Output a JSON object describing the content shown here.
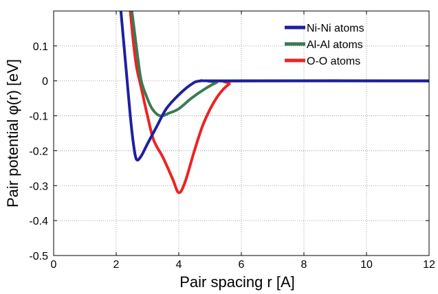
{
  "chart_data": {
    "type": "line",
    "title": "",
    "xlabel": "Pair spacing r [A]",
    "ylabel": "Pair potential φ(r) [eV]",
    "xlim": [
      0,
      12
    ],
    "ylim": [
      -0.5,
      0.2
    ],
    "x_ticks": [
      0,
      2,
      4,
      6,
      8,
      10,
      12
    ],
    "y_ticks": [
      -0.5,
      -0.4,
      -0.3,
      -0.2,
      -0.1,
      0,
      0.1
    ],
    "x_tick_labels": [
      "0",
      "2",
      "4",
      "6",
      "8",
      "10",
      "12"
    ],
    "y_tick_labels": [
      "-0.5",
      "-0.4",
      "-0.3",
      "-0.2",
      "-0.1",
      "0",
      "0.1"
    ],
    "grid": true,
    "legend_position": "top-right",
    "series": [
      {
        "name": "Ni-Ni atoms",
        "color": "#1f1fa0",
        "points": [
          [
            2.15,
            0.2
          ],
          [
            2.25,
            0.1
          ],
          [
            2.35,
            0.0
          ],
          [
            2.45,
            -0.1
          ],
          [
            2.55,
            -0.18
          ],
          [
            2.65,
            -0.225
          ],
          [
            2.8,
            -0.215
          ],
          [
            3.0,
            -0.18
          ],
          [
            3.3,
            -0.13
          ],
          [
            3.6,
            -0.08
          ],
          [
            4.0,
            -0.04
          ],
          [
            4.4,
            -0.01
          ],
          [
            4.7,
            0.0
          ],
          [
            5.5,
            0.0
          ],
          [
            12.0,
            0.0
          ]
        ]
      },
      {
        "name": "Al-Al atoms",
        "color": "#3a7a55",
        "points": [
          [
            2.5,
            0.2
          ],
          [
            2.6,
            0.13
          ],
          [
            2.7,
            0.06
          ],
          [
            2.8,
            0.0
          ],
          [
            2.95,
            -0.04
          ],
          [
            3.15,
            -0.08
          ],
          [
            3.4,
            -0.1
          ],
          [
            3.7,
            -0.092
          ],
          [
            4.0,
            -0.08
          ],
          [
            4.4,
            -0.05
          ],
          [
            4.8,
            -0.025
          ],
          [
            5.2,
            -0.005
          ],
          [
            5.5,
            0.0
          ],
          [
            12.0,
            0.0
          ]
        ]
      },
      {
        "name": "O-O atoms",
        "color": "#ee2222",
        "points": [
          [
            2.45,
            0.2
          ],
          [
            2.55,
            0.11
          ],
          [
            2.65,
            0.04
          ],
          [
            2.8,
            -0.02
          ],
          [
            3.0,
            -0.1
          ],
          [
            3.2,
            -0.17
          ],
          [
            3.5,
            -0.22
          ],
          [
            3.8,
            -0.28
          ],
          [
            4.0,
            -0.32
          ],
          [
            4.2,
            -0.29
          ],
          [
            4.5,
            -0.2
          ],
          [
            4.8,
            -0.12
          ],
          [
            5.2,
            -0.05
          ],
          [
            5.6,
            -0.01
          ],
          [
            6.0,
            0.0
          ],
          [
            12.0,
            0.0
          ]
        ]
      }
    ]
  }
}
